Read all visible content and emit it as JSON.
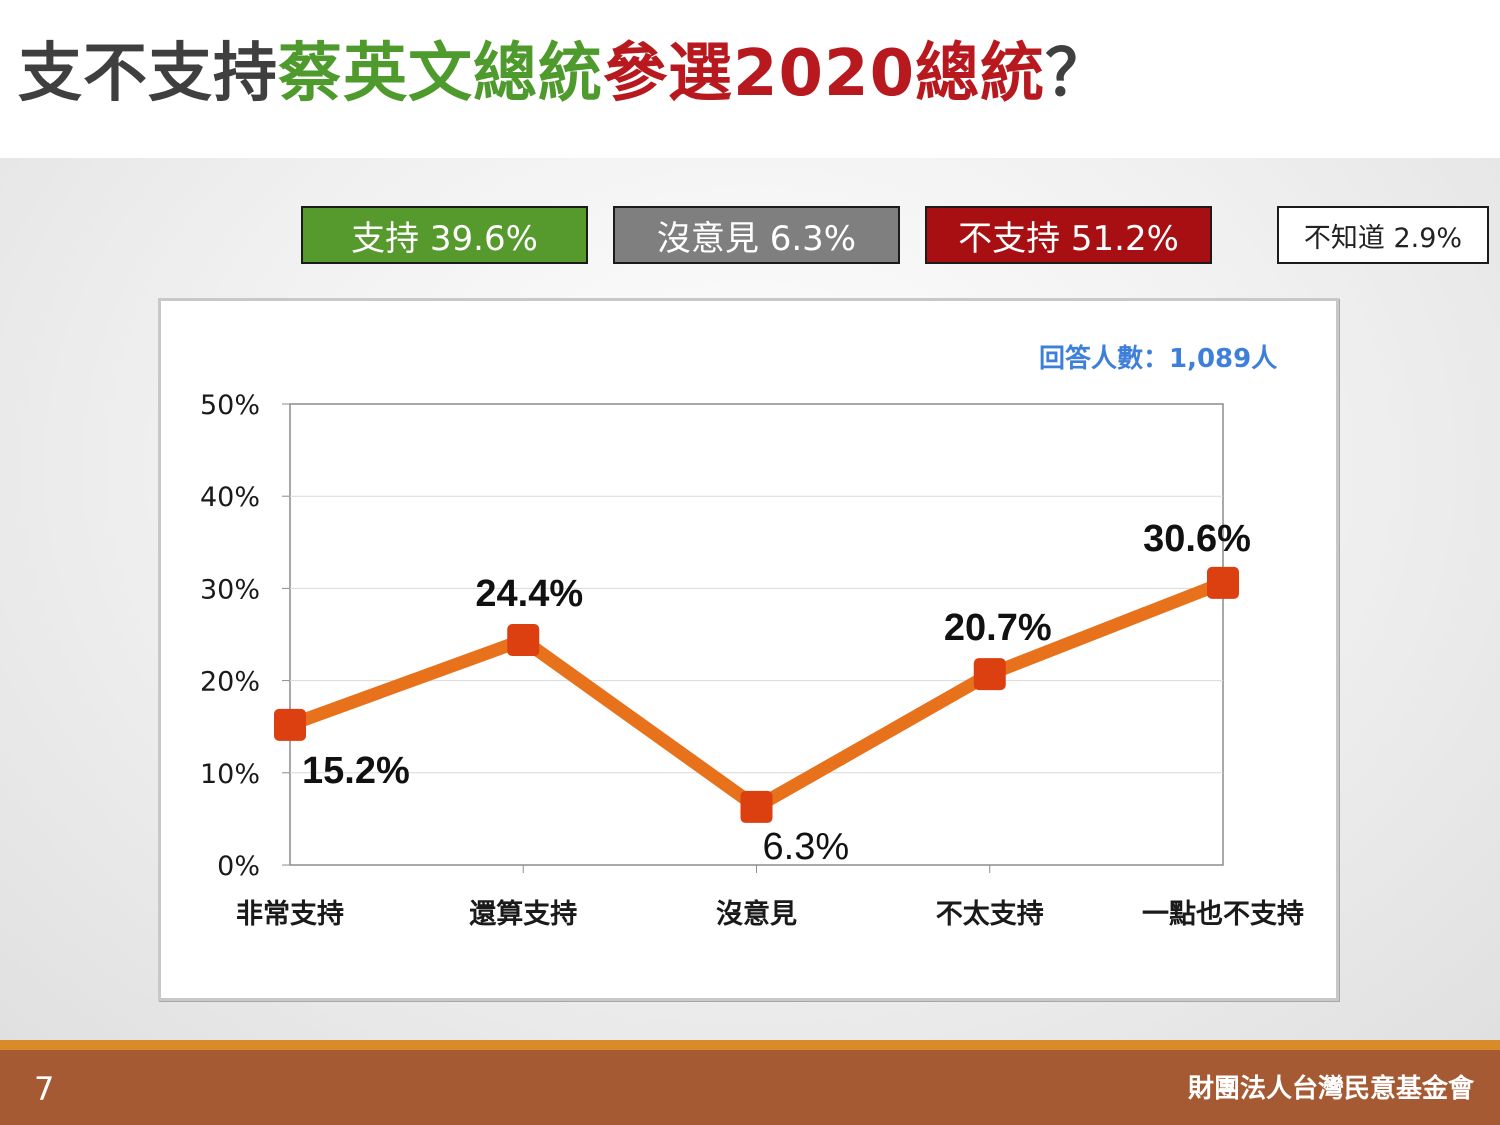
{
  "title": {
    "part1": "支不支持",
    "part2": "蔡英文總統",
    "part3": "參選2020總統",
    "part4": "？"
  },
  "summary": [
    {
      "label": "支持 39.6%",
      "color": "#56992c"
    },
    {
      "label": "沒意見 6.3%",
      "color": "#7f7f7f"
    },
    {
      "label": "不支持 51.2%",
      "color": "#a80f12"
    },
    {
      "label": "不知道 2.9%",
      "color": "#ffffff"
    }
  ],
  "respondents": "回答人數：1,089人",
  "colors": {
    "line": "#e8711c",
    "marker": "#dc3f10",
    "grid": "#d9d9d9"
  },
  "chart_data": {
    "type": "line",
    "categories": [
      "非常支持",
      "還算支持",
      "沒意見",
      "不太支持",
      "一點也不支持"
    ],
    "values": [
      15.2,
      24.4,
      6.3,
      20.7,
      30.6
    ],
    "data_labels": [
      "15.2%",
      "24.4%",
      "6.3%",
      "20.7%",
      "30.6%"
    ],
    "y_ticks": [
      "0%",
      "10%",
      "20%",
      "30%",
      "40%",
      "50%"
    ],
    "ylim": [
      0,
      50
    ],
    "grid": true
  },
  "footer": {
    "page": "7",
    "org": "財團法人台灣民意基金會"
  }
}
